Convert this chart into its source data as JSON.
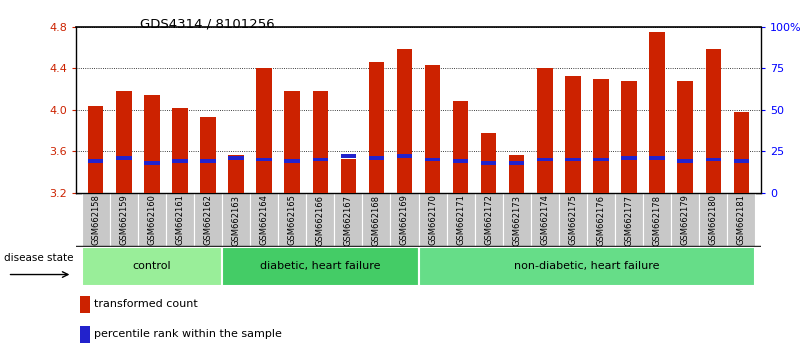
{
  "title": "GDS4314 / 8101256",
  "samples": [
    "GSM662158",
    "GSM662159",
    "GSM662160",
    "GSM662161",
    "GSM662162",
    "GSM662163",
    "GSM662164",
    "GSM662165",
    "GSM662166",
    "GSM662167",
    "GSM662168",
    "GSM662169",
    "GSM662170",
    "GSM662171",
    "GSM662172",
    "GSM662173",
    "GSM662174",
    "GSM662175",
    "GSM662176",
    "GSM662177",
    "GSM662178",
    "GSM662179",
    "GSM662180",
    "GSM662181"
  ],
  "transformed_count": [
    4.04,
    4.18,
    4.14,
    4.02,
    3.93,
    3.56,
    4.4,
    4.18,
    4.18,
    3.53,
    4.46,
    4.58,
    4.43,
    4.08,
    3.78,
    3.56,
    4.4,
    4.32,
    4.3,
    4.28,
    4.75,
    4.28,
    4.58,
    3.98
  ],
  "percentile_rank": [
    19,
    21,
    18,
    19,
    19,
    21,
    20,
    19,
    20,
    22,
    21,
    22,
    20,
    19,
    18,
    18,
    20,
    20,
    20,
    21,
    21,
    19,
    20,
    19
  ],
  "groups": [
    {
      "label": "control",
      "start": 0,
      "end": 5,
      "color": "#99EE99"
    },
    {
      "label": "diabetic, heart failure",
      "start": 5,
      "end": 12,
      "color": "#44CC66"
    },
    {
      "label": "non-diabetic, heart failure",
      "start": 12,
      "end": 24,
      "color": "#66DD88"
    }
  ],
  "bar_color": "#CC2200",
  "percentile_color": "#2222CC",
  "ylim_left": [
    3.2,
    4.8
  ],
  "ylim_right": [
    0,
    100
  ],
  "yticks_left": [
    3.2,
    3.6,
    4.0,
    4.4,
    4.8
  ],
  "yticks_right": [
    0,
    25,
    50,
    75,
    100
  ],
  "ytick_labels_right": [
    "0",
    "25",
    "50",
    "75",
    "100%"
  ],
  "grid_values": [
    3.6,
    4.0,
    4.4,
    4.8
  ],
  "bar_width": 0.55,
  "disease_state_label": "disease state",
  "legend_items": [
    {
      "color": "#CC2200",
      "label": "transformed count"
    },
    {
      "color": "#2222CC",
      "label": "percentile rank within the sample"
    }
  ],
  "tick_bg_color": "#CCCCCC",
  "tick_bg_alt": "#BBBBBB"
}
